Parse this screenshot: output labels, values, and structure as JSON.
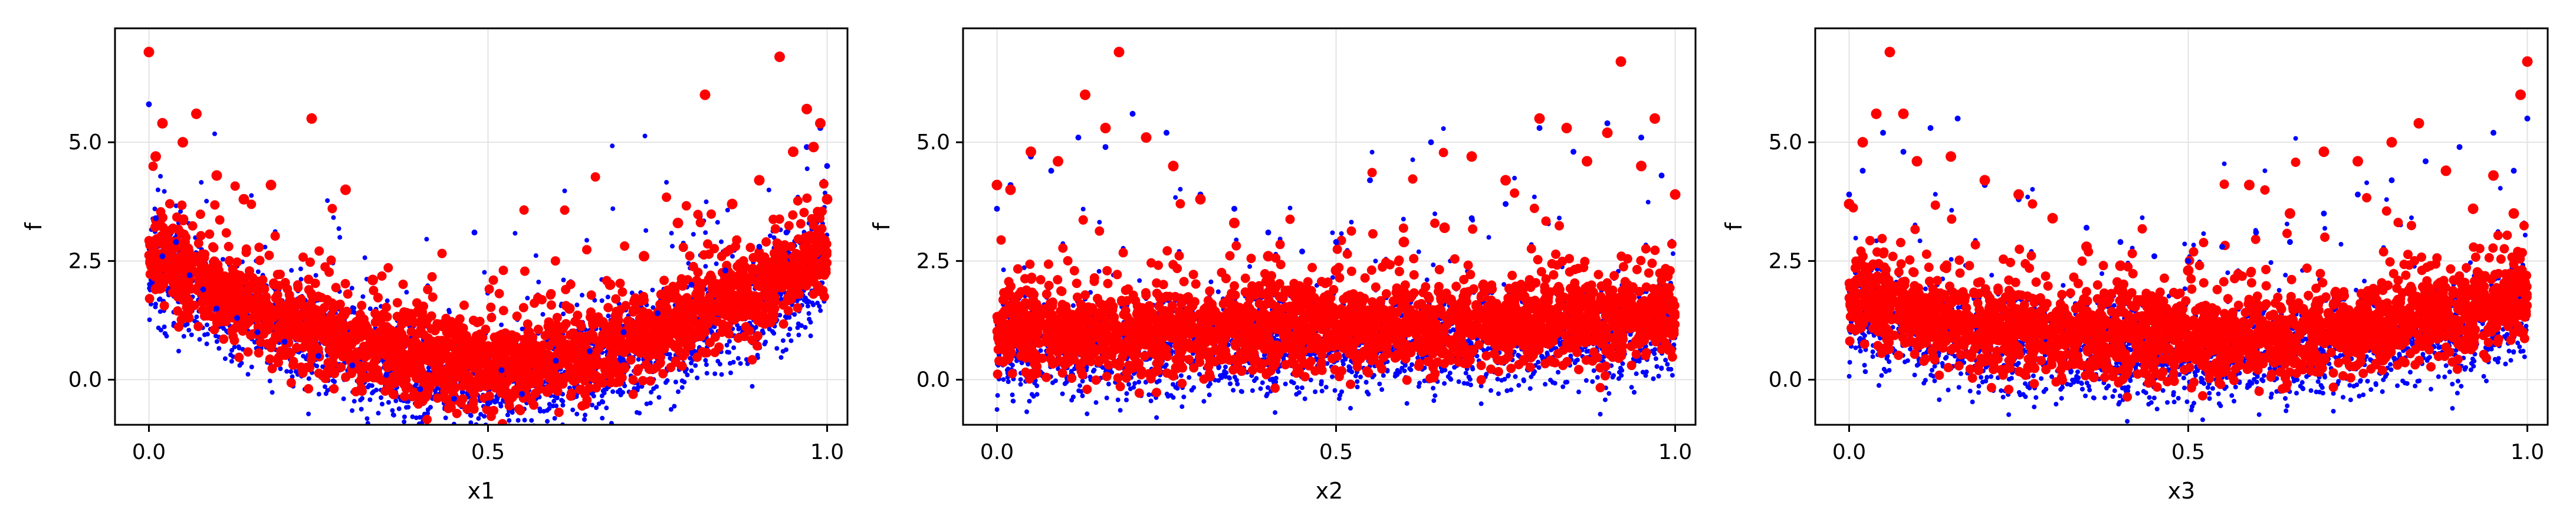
{
  "chart_data": [
    {
      "type": "scatter",
      "xlabel": "x1",
      "ylabel": "f",
      "xlim": [
        -0.05,
        1.03
      ],
      "ylim": [
        -0.95,
        7.4
      ],
      "xticks": [
        "0.0",
        "0.5",
        "1.0"
      ],
      "yticks": [
        "0.0",
        "2.5",
        "5.0"
      ],
      "grid": true,
      "profile": "bowl",
      "series": [
        {
          "color": "#0000ff",
          "marker": "small-dot",
          "x": [
            0.0,
            0.01,
            0.02,
            0.04,
            0.06,
            0.08,
            0.1,
            0.13,
            0.16,
            0.2,
            0.25,
            0.3,
            0.35,
            0.4,
            0.45,
            0.48,
            0.5,
            0.52,
            0.55,
            0.6,
            0.65,
            0.7,
            0.75,
            0.8,
            0.85,
            0.9,
            0.94,
            0.97,
            0.99,
            1.0
          ],
          "y": [
            5.8,
            3.4,
            2.6,
            2.9,
            2.2,
            1.9,
            1.5,
            1.3,
            1.0,
            0.8,
            0.5,
            0.3,
            0.1,
            -0.2,
            -0.4,
            3.1,
            -0.5,
            0.2,
            -0.3,
            0.4,
            0.6,
            1.0,
            1.4,
            2.0,
            2.3,
            2.8,
            3.1,
            4.9,
            5.3,
            4.5
          ]
        },
        {
          "color": "#ff0000",
          "marker": "large-dot",
          "x": [
            0.0,
            0.01,
            0.02,
            0.05,
            0.07,
            0.1,
            0.14,
            0.18,
            0.24,
            0.29,
            0.33,
            0.38,
            0.43,
            0.5,
            0.56,
            0.62,
            0.68,
            0.73,
            0.78,
            0.82,
            0.86,
            0.9,
            0.93,
            0.95,
            0.97,
            0.98,
            0.99,
            1.0
          ],
          "y": [
            6.9,
            4.7,
            5.4,
            5.0,
            5.6,
            4.3,
            3.8,
            4.1,
            5.5,
            4.0,
            2.1,
            1.4,
            0.8,
            0.7,
            1.0,
            1.5,
            2.0,
            2.6,
            3.3,
            6.0,
            3.7,
            4.2,
            6.8,
            4.8,
            5.7,
            4.9,
            5.4,
            3.8
          ]
        }
      ]
    },
    {
      "type": "scatter",
      "xlabel": "x2",
      "ylabel": "f",
      "xlim": [
        -0.05,
        1.03
      ],
      "ylim": [
        -0.95,
        7.4
      ],
      "xticks": [
        "0.0",
        "0.5",
        "1.0"
      ],
      "yticks": [
        "0.0",
        "2.5",
        "5.0"
      ],
      "grid": true,
      "profile": "flat",
      "series": [
        {
          "color": "#0000ff",
          "marker": "small-dot",
          "x": [
            0.0,
            0.02,
            0.05,
            0.08,
            0.12,
            0.16,
            0.2,
            0.25,
            0.3,
            0.35,
            0.4,
            0.45,
            0.5,
            0.55,
            0.6,
            0.64,
            0.7,
            0.75,
            0.8,
            0.85,
            0.9,
            0.95,
            0.98,
            1.0
          ],
          "y": [
            3.6,
            4.1,
            4.7,
            4.4,
            5.1,
            4.9,
            5.6,
            5.2,
            3.9,
            3.6,
            3.1,
            2.7,
            2.9,
            4.2,
            2.9,
            5.0,
            3.4,
            3.7,
            5.3,
            4.8,
            5.4,
            5.1,
            4.3,
            3.9
          ]
        },
        {
          "color": "#ff0000",
          "marker": "large-dot",
          "x": [
            0.0,
            0.02,
            0.05,
            0.09,
            0.13,
            0.16,
            0.18,
            0.22,
            0.26,
            0.3,
            0.35,
            0.4,
            0.5,
            0.6,
            0.66,
            0.7,
            0.75,
            0.8,
            0.84,
            0.87,
            0.9,
            0.92,
            0.95,
            0.97,
            1.0
          ],
          "y": [
            4.1,
            4.0,
            4.8,
            4.6,
            6.0,
            5.3,
            6.9,
            5.1,
            4.5,
            3.8,
            3.3,
            2.6,
            2.3,
            2.9,
            3.2,
            4.7,
            4.2,
            5.5,
            5.3,
            4.6,
            5.2,
            6.7,
            4.5,
            5.5,
            3.9
          ]
        }
      ]
    },
    {
      "type": "scatter",
      "xlabel": "x3",
      "ylabel": "f",
      "xlim": [
        -0.05,
        1.03
      ],
      "ylim": [
        -0.95,
        7.4
      ],
      "xticks": [
        "0.0",
        "0.5",
        "1.0"
      ],
      "yticks": [
        "0.0",
        "2.5",
        "5.0"
      ],
      "grid": true,
      "profile": "shallow",
      "series": [
        {
          "color": "#0000ff",
          "marker": "small-dot",
          "x": [
            0.0,
            0.02,
            0.05,
            0.08,
            0.12,
            0.16,
            0.2,
            0.25,
            0.3,
            0.35,
            0.4,
            0.45,
            0.5,
            0.55,
            0.6,
            0.65,
            0.7,
            0.75,
            0.8,
            0.85,
            0.9,
            0.95,
            0.98,
            1.0
          ],
          "y": [
            3.9,
            4.4,
            5.2,
            4.8,
            5.3,
            5.5,
            4.1,
            3.8,
            3.4,
            3.2,
            2.9,
            2.6,
            2.5,
            2.8,
            3.1,
            2.9,
            3.5,
            3.9,
            4.2,
            4.6,
            4.9,
            5.2,
            4.4,
            5.5
          ]
        },
        {
          "color": "#ff0000",
          "marker": "large-dot",
          "x": [
            0.0,
            0.02,
            0.04,
            0.06,
            0.08,
            0.1,
            0.15,
            0.2,
            0.25,
            0.3,
            0.35,
            0.4,
            0.5,
            0.59,
            0.65,
            0.7,
            0.75,
            0.8,
            0.84,
            0.88,
            0.92,
            0.95,
            0.98,
            0.99,
            1.0
          ],
          "y": [
            3.7,
            5.0,
            5.6,
            6.9,
            5.6,
            4.6,
            4.7,
            4.2,
            3.9,
            3.4,
            2.8,
            2.4,
            2.3,
            4.1,
            3.5,
            4.8,
            4.6,
            5.0,
            5.4,
            4.4,
            3.6,
            4.3,
            3.5,
            6.0,
            6.7
          ]
        }
      ]
    }
  ]
}
